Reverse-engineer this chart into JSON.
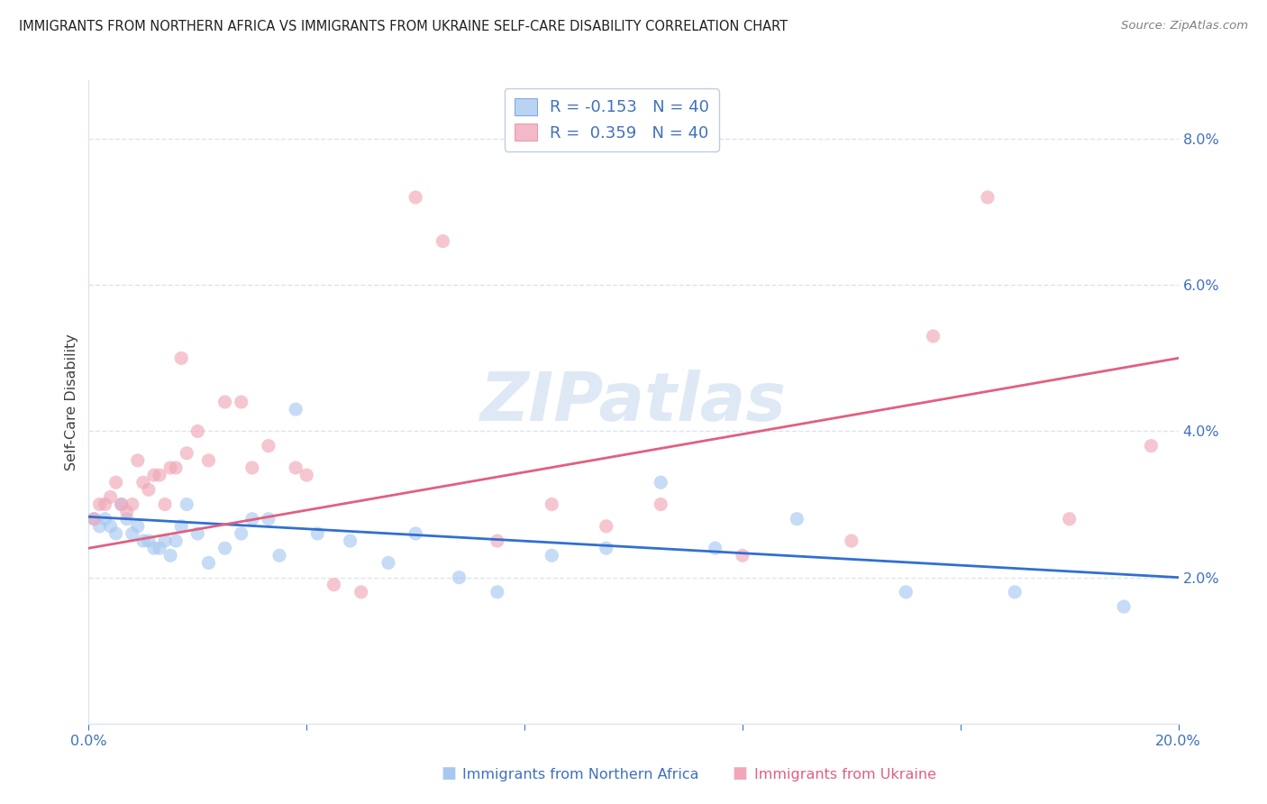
{
  "title": "IMMIGRANTS FROM NORTHERN AFRICA VS IMMIGRANTS FROM UKRAINE SELF-CARE DISABILITY CORRELATION CHART",
  "source": "Source: ZipAtlas.com",
  "xlabel_blue": "Immigrants from Northern Africa",
  "xlabel_pink": "Immigrants from Ukraine",
  "ylabel": "Self-Care Disability",
  "watermark": "ZIPatlas",
  "legend_blue_R": "-0.153",
  "legend_blue_N": "40",
  "legend_pink_R": "0.359",
  "legend_pink_N": "40",
  "xlim": [
    0.0,
    0.2
  ],
  "ylim": [
    0.0,
    0.088
  ],
  "yticks": [
    0.02,
    0.04,
    0.06,
    0.08
  ],
  "xticks": [
    0.0,
    0.04,
    0.08,
    0.12,
    0.16,
    0.2
  ],
  "blue_color": "#a8c8f0",
  "pink_color": "#f0a8b8",
  "blue_line_color": "#3070d0",
  "pink_line_color": "#e06080",
  "blue_scatter_x": [
    0.001,
    0.002,
    0.003,
    0.004,
    0.005,
    0.006,
    0.007,
    0.008,
    0.009,
    0.01,
    0.011,
    0.012,
    0.013,
    0.014,
    0.015,
    0.016,
    0.017,
    0.018,
    0.02,
    0.022,
    0.025,
    0.028,
    0.03,
    0.033,
    0.035,
    0.038,
    0.042,
    0.048,
    0.055,
    0.06,
    0.068,
    0.075,
    0.085,
    0.095,
    0.105,
    0.115,
    0.13,
    0.15,
    0.17,
    0.19
  ],
  "blue_scatter_y": [
    0.028,
    0.027,
    0.028,
    0.027,
    0.026,
    0.03,
    0.028,
    0.026,
    0.027,
    0.025,
    0.025,
    0.024,
    0.024,
    0.025,
    0.023,
    0.025,
    0.027,
    0.03,
    0.026,
    0.022,
    0.024,
    0.026,
    0.028,
    0.028,
    0.023,
    0.043,
    0.026,
    0.025,
    0.022,
    0.026,
    0.02,
    0.018,
    0.023,
    0.024,
    0.033,
    0.024,
    0.028,
    0.018,
    0.018,
    0.016
  ],
  "pink_scatter_x": [
    0.001,
    0.002,
    0.003,
    0.004,
    0.005,
    0.006,
    0.007,
    0.008,
    0.009,
    0.01,
    0.011,
    0.012,
    0.013,
    0.014,
    0.015,
    0.016,
    0.017,
    0.018,
    0.02,
    0.022,
    0.025,
    0.028,
    0.03,
    0.033,
    0.038,
    0.04,
    0.045,
    0.05,
    0.06,
    0.065,
    0.075,
    0.085,
    0.095,
    0.105,
    0.12,
    0.14,
    0.155,
    0.165,
    0.18,
    0.195
  ],
  "pink_scatter_y": [
    0.028,
    0.03,
    0.03,
    0.031,
    0.033,
    0.03,
    0.029,
    0.03,
    0.036,
    0.033,
    0.032,
    0.034,
    0.034,
    0.03,
    0.035,
    0.035,
    0.05,
    0.037,
    0.04,
    0.036,
    0.044,
    0.044,
    0.035,
    0.038,
    0.035,
    0.034,
    0.019,
    0.018,
    0.072,
    0.066,
    0.025,
    0.03,
    0.027,
    0.03,
    0.023,
    0.025,
    0.053,
    0.072,
    0.028,
    0.038
  ],
  "blue_line_x": [
    0.0,
    0.2
  ],
  "blue_line_y": [
    0.0283,
    0.02
  ],
  "pink_line_x": [
    0.0,
    0.2
  ],
  "pink_line_y": [
    0.024,
    0.05
  ],
  "grid_color": "#dce4f0",
  "title_color": "#222222",
  "axis_label_color": "#4070c0",
  "tick_color": "#4070c0",
  "background_color": "#ffffff",
  "legend_border_color": "#c0cce0"
}
